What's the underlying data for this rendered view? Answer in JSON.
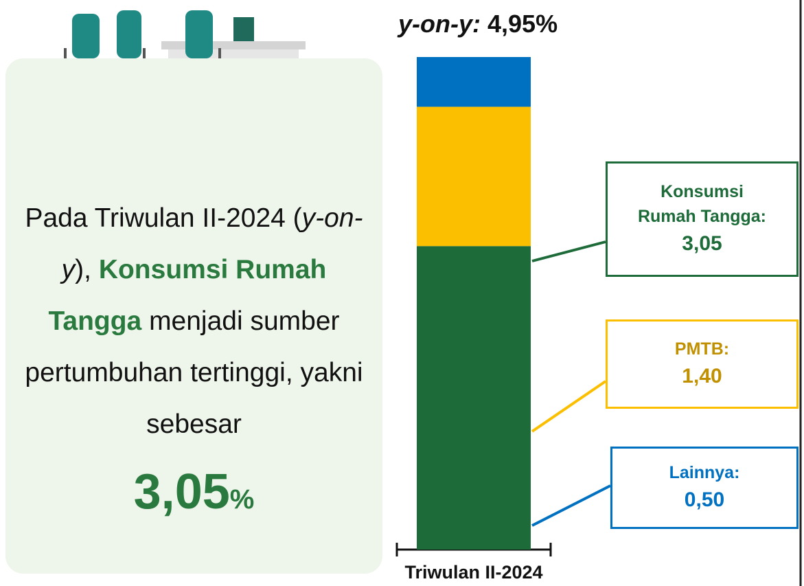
{
  "panel": {
    "text_1": "Pada Triwulan II-2024 (",
    "italic": "y-on-y",
    "text_2": "), ",
    "highlight": "Konsumsi Rumah Tangga",
    "text_3": " menjadi sumber pertumbuhan tertinggi, yakni sebesar",
    "figure": "3,05",
    "unit": "%"
  },
  "chart_data": {
    "type": "stacked_bar",
    "title_label": "y-on-y:",
    "title_value": "4,95%",
    "categories": [
      "Triwulan II-2024"
    ],
    "series": [
      {
        "name": "Konsumsi Rumah Tangga:",
        "color": "#1e6b3a",
        "label_color": "#1e6b3a",
        "values": [
          3.05
        ],
        "value_labels": [
          "3,05"
        ]
      },
      {
        "name": "PMTB:",
        "color": "#fbbf00",
        "label_color": "#c09000",
        "values": [
          1.4
        ],
        "value_labels": [
          "1,40"
        ]
      },
      {
        "name": "Lainnya:",
        "color": "#0070c0",
        "label_color": "#0070c0",
        "values": [
          0.5
        ],
        "value_labels": [
          "0,50"
        ]
      }
    ]
  }
}
